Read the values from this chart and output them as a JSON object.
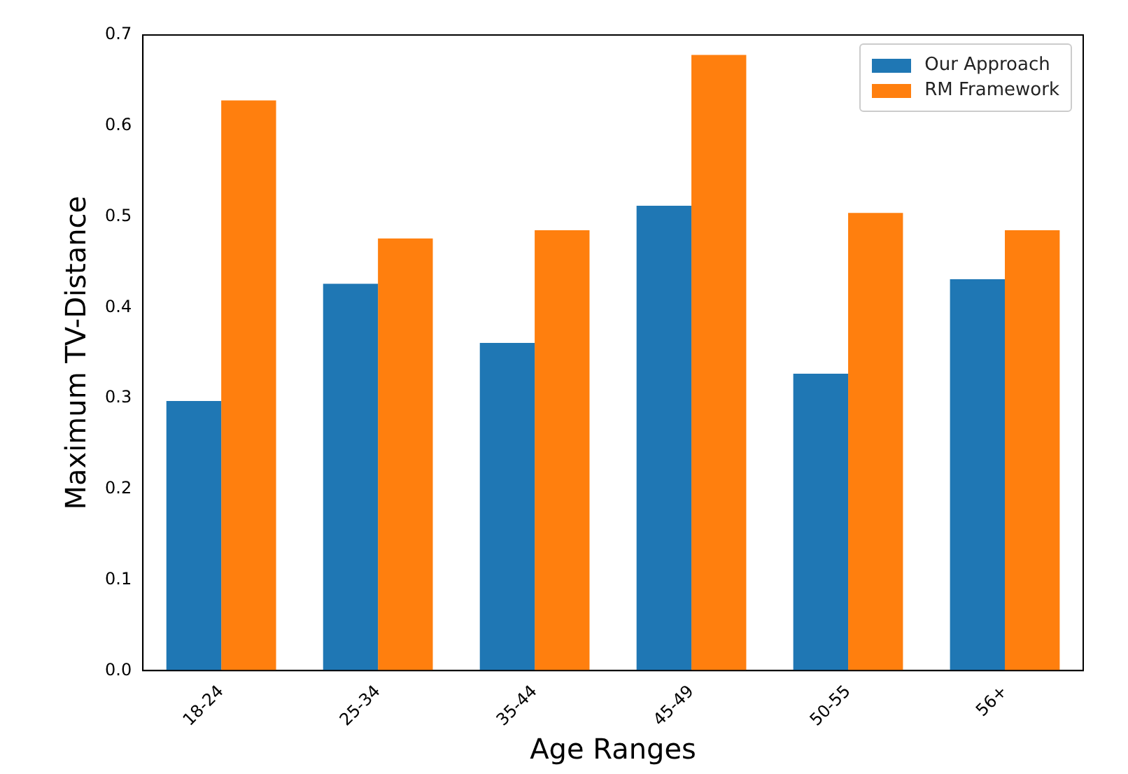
{
  "chart_data": {
    "type": "bar",
    "xlabel": "Age Ranges",
    "ylabel": "Maximum TV-Distance",
    "categories": [
      "18-24",
      "25-34",
      "35-44",
      "45-49",
      "50-55",
      "56+"
    ],
    "series": [
      {
        "name": "Our Approach",
        "color": "#1f77b4",
        "values": [
          0.297,
          0.426,
          0.361,
          0.512,
          0.327,
          0.431
        ]
      },
      {
        "name": "RM Framework",
        "color": "#ff7f0e",
        "values": [
          0.628,
          0.476,
          0.485,
          0.678,
          0.504,
          0.485
        ]
      }
    ],
    "ylim": [
      0,
      0.7
    ],
    "yticks": [
      {
        "value": 0,
        "label": "0.0"
      },
      {
        "value": 0.1,
        "label": "0.1"
      },
      {
        "value": 0.2,
        "label": "0.2"
      },
      {
        "value": 0.3,
        "label": "0.3"
      },
      {
        "value": 0.4,
        "label": "0.4"
      },
      {
        "value": 0.5,
        "label": "0.5"
      },
      {
        "value": 0.6,
        "label": "0.6"
      },
      {
        "value": 0.7,
        "label": "0.7"
      }
    ],
    "grid": false,
    "legend": "top right"
  }
}
